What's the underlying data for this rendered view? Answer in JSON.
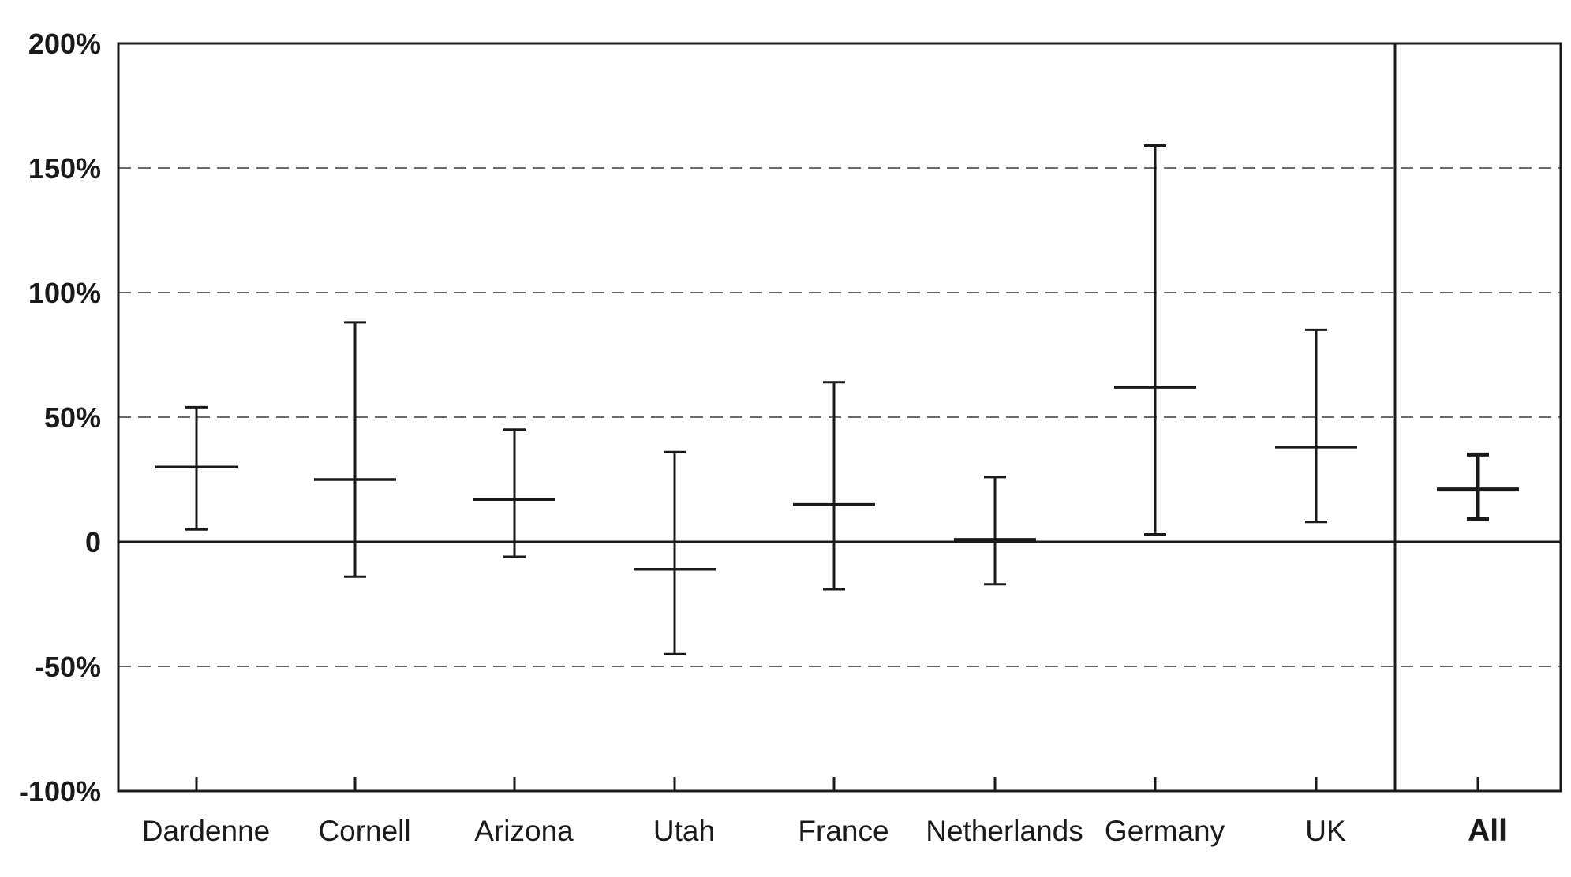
{
  "chart_data": {
    "type": "error-bar",
    "title": "",
    "xlabel": "",
    "ylabel": "",
    "ylim": [
      -100,
      200
    ],
    "y_ticks": [
      {
        "value": 200,
        "label": "200%"
      },
      {
        "value": 150,
        "label": "150%"
      },
      {
        "value": 100,
        "label": "100%"
      },
      {
        "value": 50,
        "label": "50%"
      },
      {
        "value": 0,
        "label": "0"
      },
      {
        "value": -50,
        "label": "-50%"
      },
      {
        "value": -100,
        "label": "-100%"
      }
    ],
    "grid": "horizontal dashed at 150, 100, 50, -50",
    "categories": [
      "Dardenne",
      "Cornell",
      "Arizona",
      "Utah",
      "France",
      "Netherlands",
      "Germany",
      "UK",
      "All"
    ],
    "estimates": [
      30,
      25,
      17,
      -11,
      15,
      1,
      62,
      38,
      21
    ],
    "lower": [
      5,
      -14,
      -6,
      -45,
      -19,
      -17,
      3,
      8,
      9
    ],
    "upper": [
      54,
      88,
      45,
      36,
      64,
      26,
      159,
      85,
      35
    ],
    "separated_panel_category": "All",
    "colors": {
      "ink": "#1a1a1a",
      "grid": "#555555"
    }
  }
}
